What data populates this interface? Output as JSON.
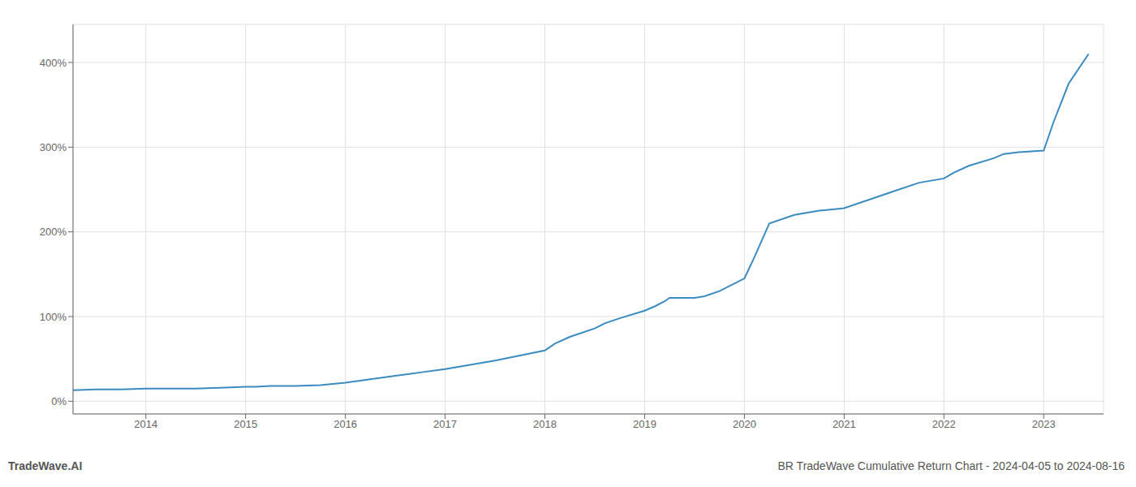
{
  "chart_data": {
    "type": "line",
    "title": "BR TradeWave Cumulative Return Chart - 2024-04-05 to 2024-08-16",
    "annotations": [
      "TradeWave.AI"
    ],
    "x": [
      2013.27,
      2013.5,
      2013.75,
      2014.0,
      2014.1,
      2014.25,
      2014.5,
      2014.75,
      2015.0,
      2015.1,
      2015.25,
      2015.5,
      2015.75,
      2016.0,
      2016.25,
      2016.5,
      2016.75,
      2017.0,
      2017.25,
      2017.5,
      2017.75,
      2018.0,
      2018.1,
      2018.25,
      2018.5,
      2018.6,
      2018.75,
      2019.0,
      2019.1,
      2019.2,
      2019.25,
      2019.5,
      2019.6,
      2019.75,
      2020.0,
      2020.1,
      2020.25,
      2020.5,
      2020.75,
      2021.0,
      2021.25,
      2021.5,
      2021.75,
      2022.0,
      2022.1,
      2022.25,
      2022.5,
      2022.6,
      2022.75,
      2023.0,
      2023.1,
      2023.25,
      2023.45
    ],
    "values": [
      13,
      14,
      14,
      15,
      15,
      15,
      15,
      16,
      17,
      17,
      18,
      18,
      19,
      22,
      26,
      30,
      34,
      38,
      43,
      48,
      54,
      60,
      68,
      76,
      86,
      92,
      98,
      107,
      112,
      118,
      122,
      122,
      124,
      130,
      145,
      170,
      210,
      220,
      225,
      228,
      238,
      248,
      258,
      263,
      270,
      278,
      287,
      292,
      294,
      296,
      330,
      375,
      410
    ],
    "color": "#3a8bbf",
    "xlim": [
      2013.27,
      2023.6
    ],
    "xticks": [
      2014,
      2015,
      2016,
      2017,
      2018,
      2019,
      2020,
      2021,
      2022,
      2023
    ],
    "ylim": [
      -15,
      445
    ],
    "yticks": [
      {
        "value": 0,
        "label": "0%"
      },
      {
        "value": 100,
        "label": "100%"
      },
      {
        "value": 200,
        "label": "200%"
      },
      {
        "value": 300,
        "label": "300%"
      },
      {
        "value": 400,
        "label": "400%"
      }
    ],
    "grid": true
  }
}
